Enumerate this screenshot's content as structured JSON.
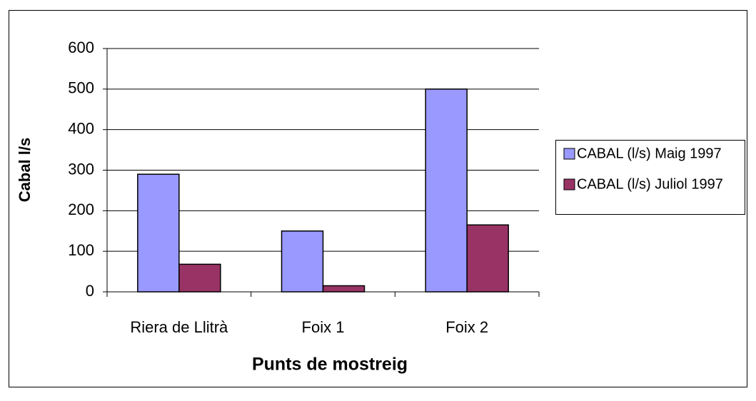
{
  "chart_data": {
    "type": "bar",
    "categories": [
      "Riera de Llitrà",
      "Foix 1",
      "Foix 2"
    ],
    "series": [
      {
        "name": "CABAL (l/s) Maig 1997",
        "color": "#9999ff",
        "values": [
          290,
          150,
          500
        ]
      },
      {
        "name": "CABAL (l/s) Juliol 1997",
        "color": "#993366",
        "values": [
          68,
          15,
          165
        ]
      }
    ],
    "ylabel": "Cabal l/s",
    "xlabel": "Punts de mostreig",
    "ylim": [
      0,
      600
    ],
    "yticks": [
      0,
      100,
      200,
      300,
      400,
      500,
      600
    ],
    "grid": true,
    "legend": "right"
  }
}
